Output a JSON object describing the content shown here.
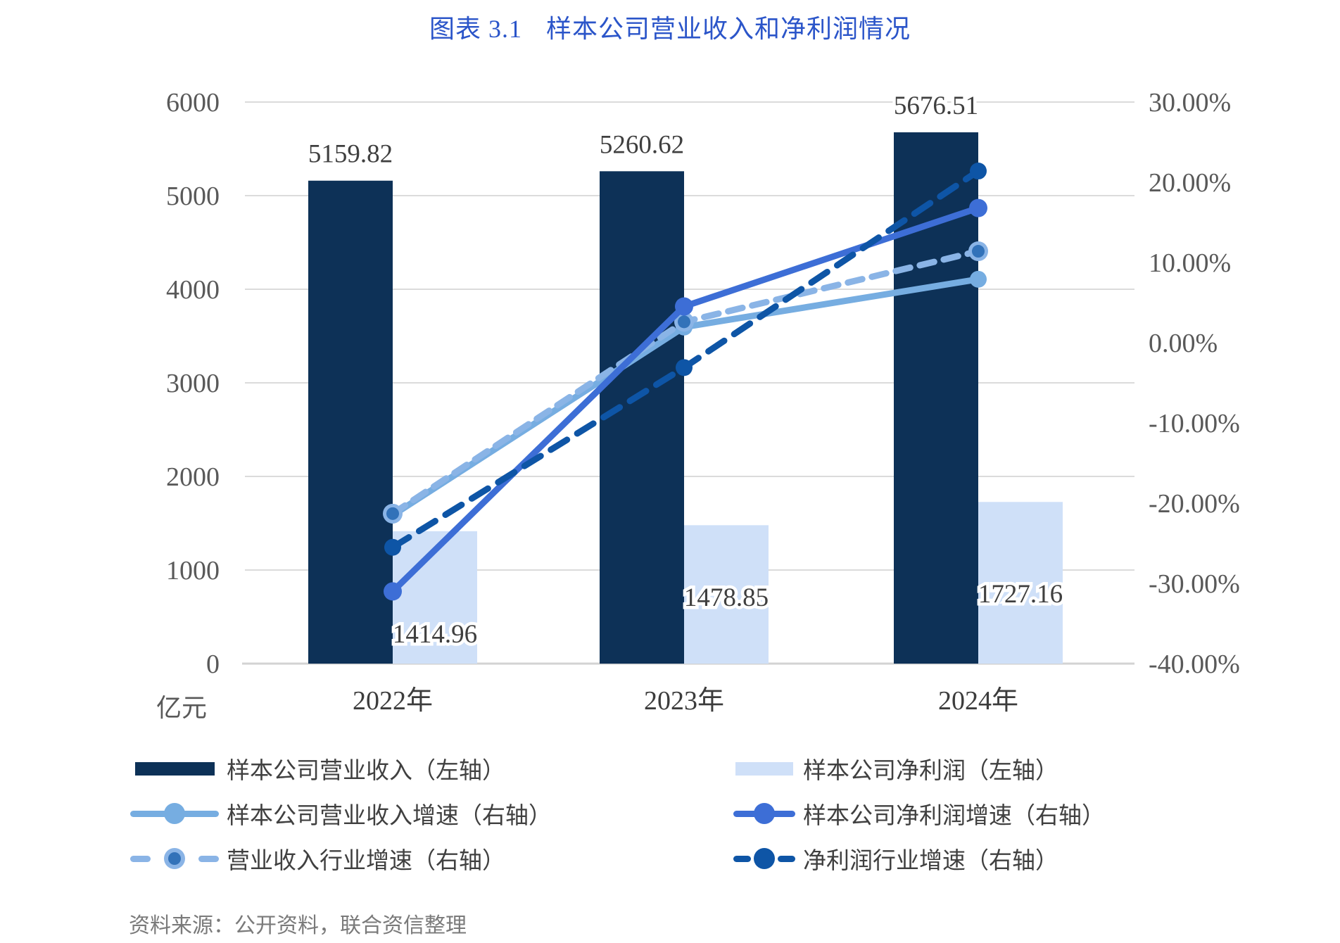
{
  "title": {
    "prefix": "图表 3.1",
    "text": "样本公司营业收入和净利润情况",
    "color": "#2B55C9"
  },
  "source": {
    "text": "资料来源：公开资料，联合资信整理"
  },
  "chart_data": {
    "type": "combo-bar-line",
    "categories": [
      "2022年",
      "2023年",
      "2024年"
    ],
    "left_axis": {
      "title": "亿元",
      "min": 0,
      "max": 6000,
      "step": 1000,
      "ticks": [
        "0",
        "1000",
        "2000",
        "3000",
        "4000",
        "5000",
        "6000"
      ]
    },
    "right_axis": {
      "min": -40,
      "max": 30,
      "step": 10,
      "ticks": [
        "30.00%",
        "20.00%",
        "10.00%",
        "0.00%",
        "-10.00%",
        "-20.00%",
        "-30.00%",
        "-40.00%"
      ]
    },
    "grid": true,
    "legend_position": "bottom",
    "bar_series": [
      {
        "name": "样本公司营业收入（左轴）",
        "axis": "left",
        "color": "#0D3157",
        "values": [
          5159.82,
          5260.62,
          5676.51
        ],
        "labels": [
          "5159.82",
          "5260.62",
          "5676.51"
        ]
      },
      {
        "name": "样本公司净利润（左轴）",
        "axis": "left",
        "color": "#CFE0F8",
        "values": [
          1414.96,
          1478.85,
          1727.16
        ],
        "labels": [
          "1414.96",
          "1478.85",
          "1727.16"
        ]
      }
    ],
    "line_series": [
      {
        "name": "样本公司营业收入增速（右轴）",
        "axis": "right",
        "style": "solid",
        "color": "#76ADE1",
        "values": [
          -21.5,
          1.95,
          7.91
        ]
      },
      {
        "name": "样本公司净利润增速（右轴）",
        "axis": "right",
        "style": "solid",
        "color": "#3D6ED6",
        "values": [
          -31.0,
          4.52,
          16.79
        ]
      },
      {
        "name": "营业收入行业增速（右轴）",
        "axis": "right",
        "style": "dashed",
        "color": "#8AB4E6",
        "marker_fill": "#3272B9",
        "values": [
          -21.3,
          2.6,
          11.4
        ]
      },
      {
        "name": "净利润行业增速（右轴）",
        "axis": "right",
        "style": "dashed",
        "color": "#0E55A6",
        "values": [
          -25.5,
          -3.1,
          21.4
        ]
      }
    ],
    "grid_color": "#DBDBDB",
    "axis_label_color": "#595959",
    "data_label_color": "#3F3F3F"
  }
}
